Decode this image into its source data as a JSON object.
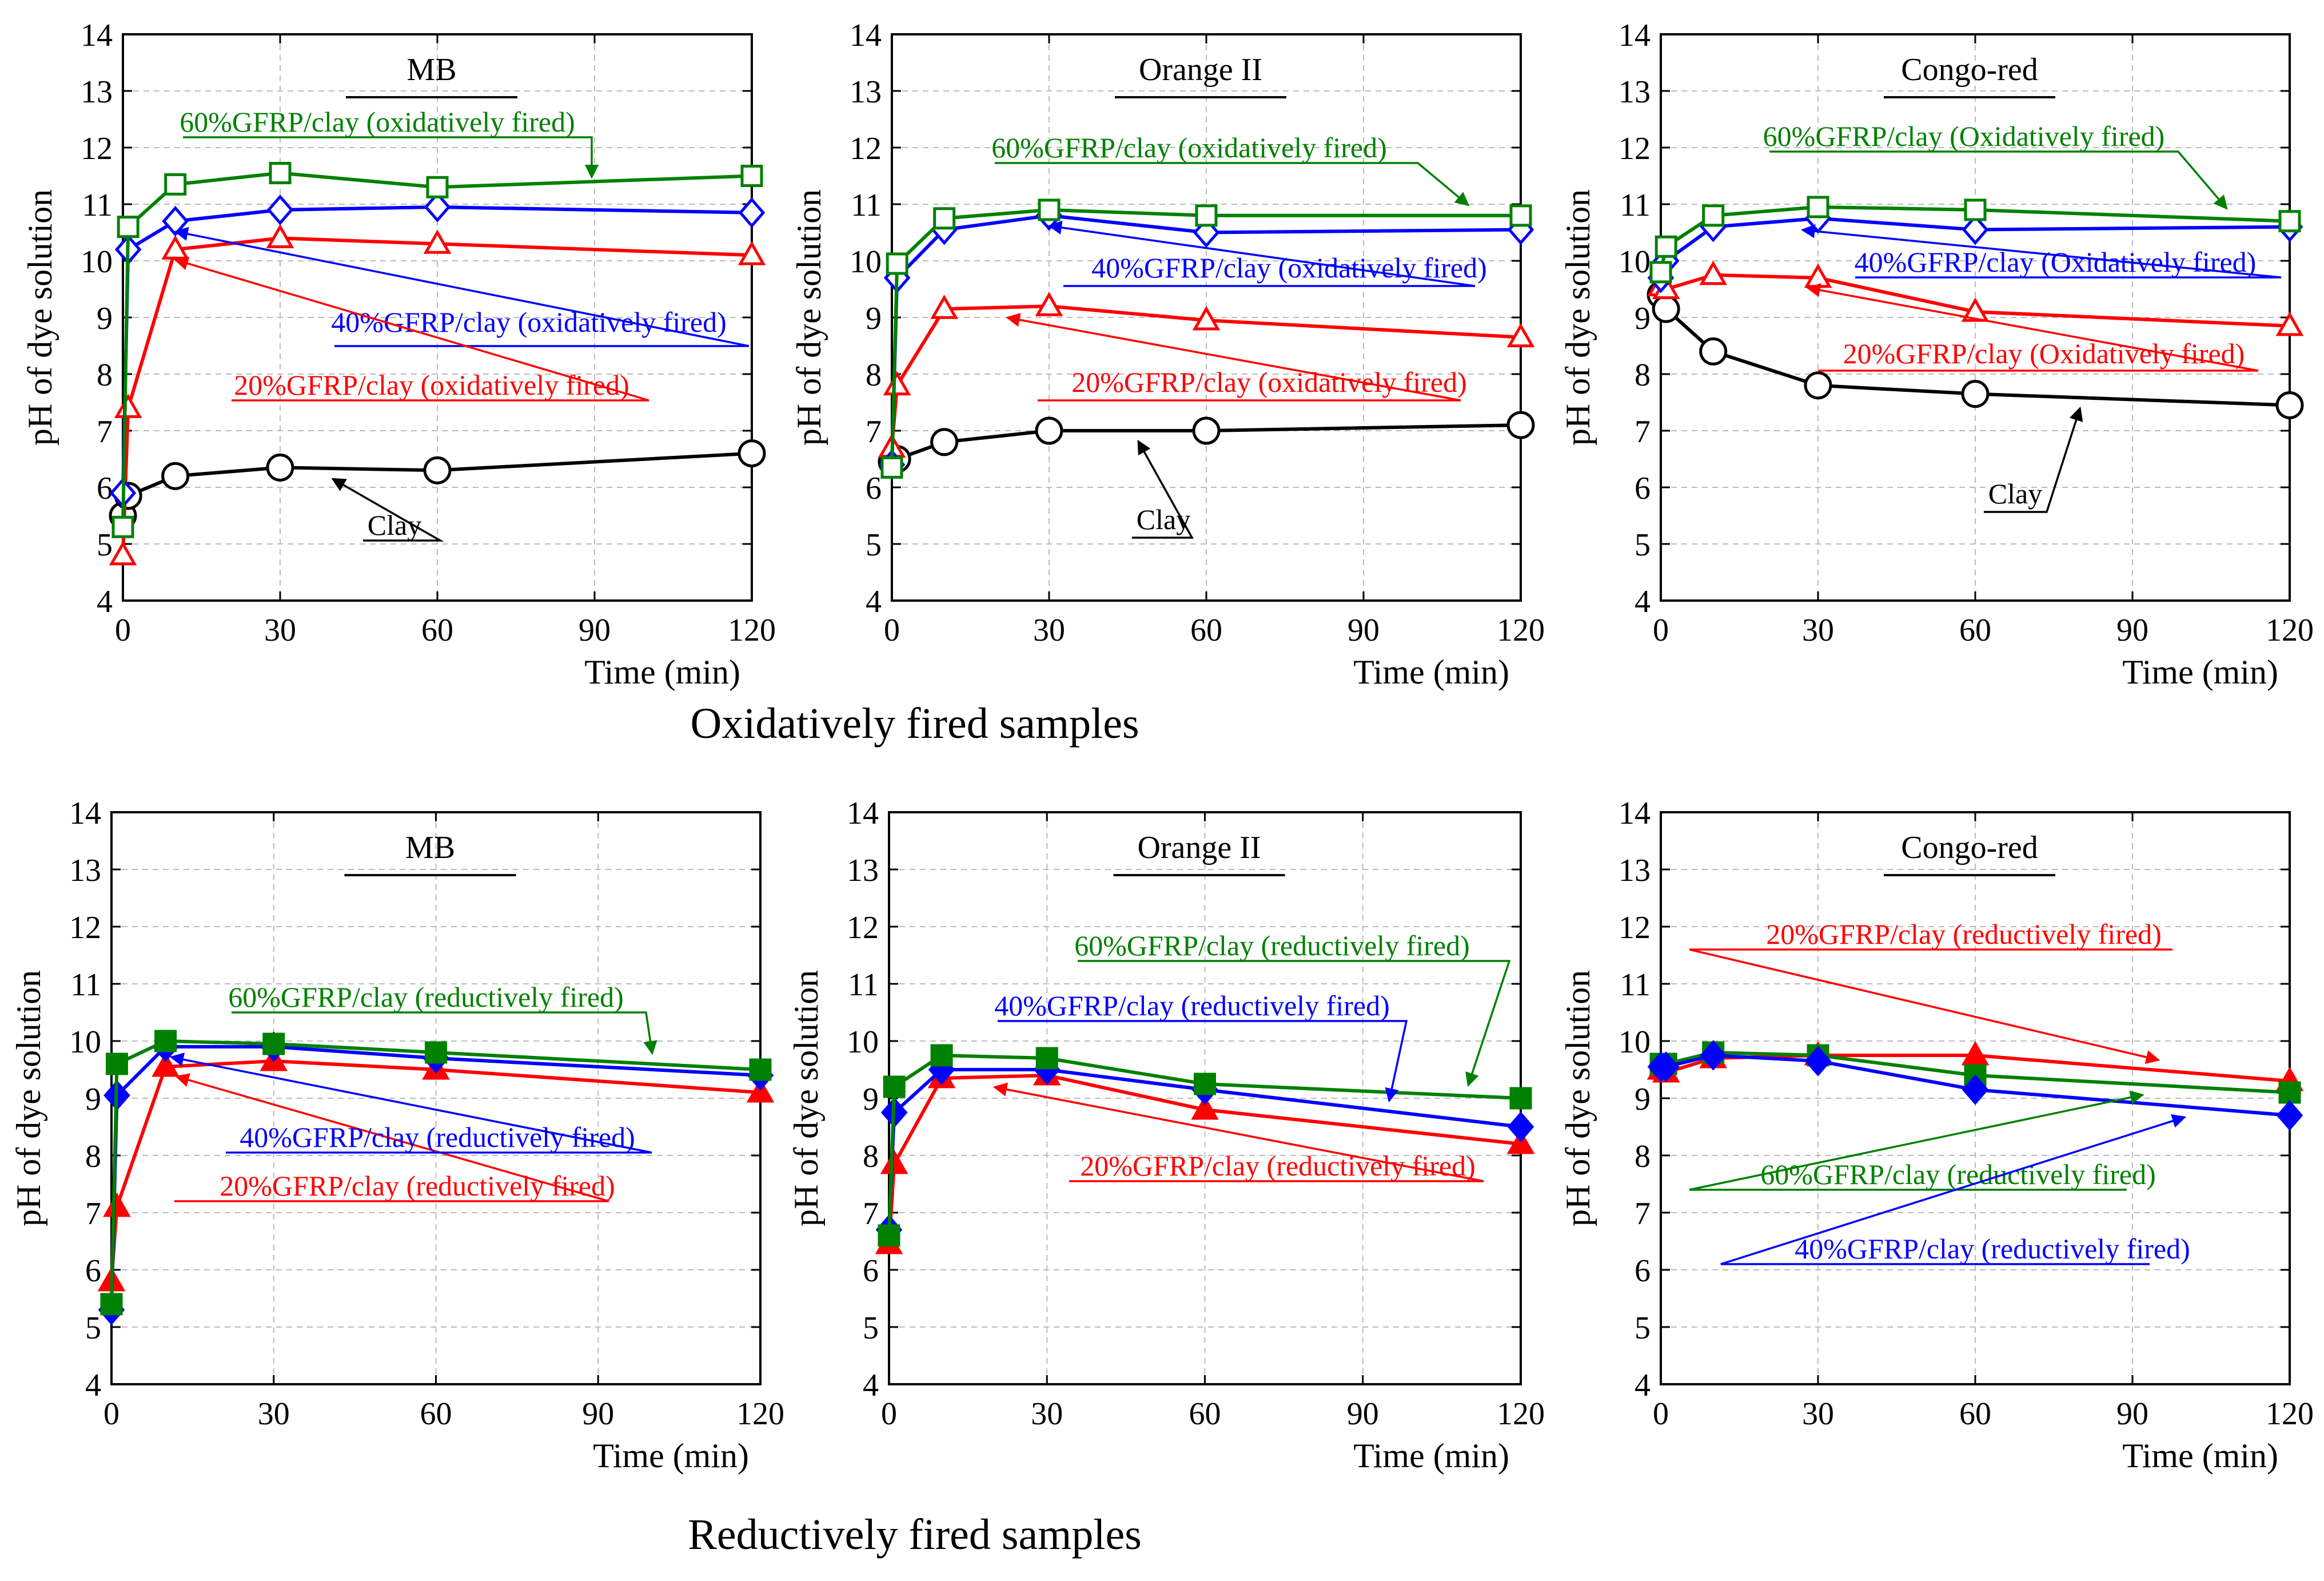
{
  "figure": {
    "row_captions": [
      "Oxidatively fired samples",
      "Reductively fired samples"
    ]
  },
  "colors": {
    "clay": "#000000",
    "gfrp20": "#ff0000",
    "gfrp40": "#0000ff",
    "gfrp60": "#008000",
    "grid": "#bbbbbb"
  },
  "chart_data": [
    {
      "type": "line",
      "title": "MB",
      "group": "Oxidatively fired samples",
      "xlabel": "Time (min)",
      "ylabel": "pH of dye solution",
      "xlim": [
        0,
        120
      ],
      "ylim": [
        4,
        14
      ],
      "xticks": [
        0,
        30,
        60,
        90,
        120
      ],
      "yticks": [
        4,
        5,
        6,
        7,
        8,
        9,
        10,
        11,
        12,
        13,
        14
      ],
      "grid": true,
      "series": [
        {
          "name": "Clay",
          "label": "Clay",
          "marker": "open-circle",
          "color": "#000000",
          "x": [
            0,
            1,
            10,
            30,
            60,
            120
          ],
          "y": [
            5.5,
            5.85,
            6.2,
            6.35,
            6.3,
            6.6
          ]
        },
        {
          "name": "20%GFRP/clay (oxidatively fired)",
          "label": "20%GFRP/clay (oxidatively fired)",
          "marker": "open-triangle",
          "color": "#ff0000",
          "x": [
            0,
            1,
            10,
            30,
            60,
            120
          ],
          "y": [
            4.8,
            7.4,
            10.2,
            10.4,
            10.3,
            10.1
          ]
        },
        {
          "name": "40%GFRP/clay (oxidatively fired)",
          "label": "40%GFRP/clay (oxidatively fired)",
          "marker": "open-diamond",
          "color": "#0000ff",
          "x": [
            0,
            1,
            10,
            30,
            60,
            120
          ],
          "y": [
            5.9,
            10.2,
            10.7,
            10.9,
            10.95,
            10.85
          ]
        },
        {
          "name": "60%GFRP/clay (oxidatively fired)",
          "label": "60%GFRP/clay (oxidatively fired)",
          "marker": "open-square",
          "color": "#008000",
          "x": [
            0,
            1,
            10,
            30,
            60,
            120
          ],
          "y": [
            5.3,
            10.6,
            11.35,
            11.55,
            11.3,
            11.5
          ]
        }
      ]
    },
    {
      "type": "line",
      "title": "Orange II",
      "group": "Oxidatively fired samples",
      "xlabel": "Time (min)",
      "ylabel": "pH of dye solution",
      "xlim": [
        0,
        120
      ],
      "ylim": [
        4,
        14
      ],
      "xticks": [
        0,
        30,
        60,
        90,
        120
      ],
      "yticks": [
        4,
        5,
        6,
        7,
        8,
        9,
        10,
        11,
        12,
        13,
        14
      ],
      "grid": true,
      "series": [
        {
          "name": "Clay",
          "label": "Clay",
          "marker": "open-circle",
          "color": "#000000",
          "x": [
            0,
            1,
            10,
            30,
            60,
            120
          ],
          "y": [
            6.45,
            6.5,
            6.8,
            7.0,
            7.0,
            7.1
          ]
        },
        {
          "name": "20%GFRP/clay (oxidatively fired)",
          "label": "20%GFRP/clay (oxidatively fired)",
          "marker": "open-triangle",
          "color": "#ff0000",
          "x": [
            0,
            1,
            10,
            30,
            60,
            120
          ],
          "y": [
            6.7,
            7.8,
            9.15,
            9.2,
            8.95,
            8.65
          ]
        },
        {
          "name": "40%GFRP/clay (oxidatively fired)",
          "label": "40%GFRP/clay (oxidatively fired)",
          "marker": "open-diamond",
          "color": "#0000ff",
          "x": [
            0,
            1,
            10,
            30,
            60,
            120
          ],
          "y": [
            6.4,
            9.7,
            10.55,
            10.8,
            10.5,
            10.55
          ]
        },
        {
          "name": "60%GFRP/clay (oxidatively fired)",
          "label": "60%GFRP/clay (oxidatively fired)",
          "marker": "open-square",
          "color": "#008000",
          "x": [
            0,
            1,
            10,
            30,
            60,
            120
          ],
          "y": [
            6.35,
            9.95,
            10.75,
            10.9,
            10.8,
            10.8
          ]
        }
      ]
    },
    {
      "type": "line",
      "title": "Congo-red",
      "group": "Oxidatively fired samples",
      "xlabel": "Time (min)",
      "ylabel": "pH of dye solution",
      "xlim": [
        0,
        120
      ],
      "ylim": [
        4,
        14
      ],
      "xticks": [
        0,
        30,
        60,
        90,
        120
      ],
      "yticks": [
        4,
        5,
        6,
        7,
        8,
        9,
        10,
        11,
        12,
        13,
        14
      ],
      "grid": true,
      "series": [
        {
          "name": "Clay",
          "label": "Clay",
          "marker": "open-circle",
          "color": "#000000",
          "x": [
            0,
            1,
            10,
            30,
            60,
            120
          ],
          "y": [
            9.4,
            9.15,
            8.4,
            7.8,
            7.65,
            7.45
          ]
        },
        {
          "name": "20%GFRP/clay (Oxidatively fired)",
          "label": "20%GFRP/clay (Oxidatively fired)",
          "marker": "open-triangle",
          "color": "#ff0000",
          "x": [
            0,
            1,
            10,
            30,
            60,
            120
          ],
          "y": [
            9.55,
            9.5,
            9.75,
            9.7,
            9.1,
            8.85
          ]
        },
        {
          "name": "40%GFRP/clay (Oxidatively fired)",
          "label": "40%GFRP/clay (Oxidatively fired)",
          "marker": "open-diamond",
          "color": "#0000ff",
          "x": [
            0,
            1,
            10,
            30,
            60,
            120
          ],
          "y": [
            9.7,
            10.0,
            10.6,
            10.75,
            10.55,
            10.6
          ]
        },
        {
          "name": "60%GFRP/clay (Oxidatively fired)",
          "label": "60%GFRP/clay (Oxidatively fired)",
          "marker": "open-square",
          "color": "#008000",
          "x": [
            0,
            1,
            10,
            30,
            60,
            120
          ],
          "y": [
            9.8,
            10.25,
            10.8,
            10.95,
            10.9,
            10.7
          ]
        }
      ]
    },
    {
      "type": "line",
      "title": "MB",
      "group": "Reductively fired samples",
      "xlabel": "Time (min)",
      "ylabel": "pH of dye solution",
      "xlim": [
        0,
        120
      ],
      "ylim": [
        4,
        14
      ],
      "xticks": [
        0,
        30,
        60,
        90,
        120
      ],
      "yticks": [
        4,
        5,
        6,
        7,
        8,
        9,
        10,
        11,
        12,
        13,
        14
      ],
      "grid": true,
      "series": [
        {
          "name": "20%GFRP/clay (reductively fired)",
          "label": "20%GFRP/clay (reductively fired)",
          "marker": "filled-triangle",
          "color": "#ff0000",
          "x": [
            0,
            1,
            10,
            30,
            60,
            120
          ],
          "y": [
            5.8,
            7.1,
            9.55,
            9.65,
            9.5,
            9.1
          ]
        },
        {
          "name": "40%GFRP/clay (reductively fired)",
          "label": "40%GFRP/clay (reductively fired)",
          "marker": "filled-diamond",
          "color": "#0000ff",
          "x": [
            0,
            1,
            10,
            30,
            60,
            120
          ],
          "y": [
            5.3,
            9.05,
            9.9,
            9.9,
            9.7,
            9.4
          ]
        },
        {
          "name": "60%GFRP/clay (reductively fired)",
          "label": "60%GFRP/clay (reductively fired)",
          "marker": "filled-square",
          "color": "#008000",
          "x": [
            0,
            1,
            10,
            30,
            60,
            120
          ],
          "y": [
            5.4,
            9.6,
            10.0,
            9.95,
            9.8,
            9.5
          ]
        }
      ]
    },
    {
      "type": "line",
      "title": "Orange II",
      "group": "Reductively fired samples",
      "xlabel": "Time (min)",
      "ylabel": "pH of dye solution",
      "xlim": [
        0,
        120
      ],
      "ylim": [
        4,
        14
      ],
      "xticks": [
        0,
        30,
        60,
        90,
        120
      ],
      "yticks": [
        4,
        5,
        6,
        7,
        8,
        9,
        10,
        11,
        12,
        13,
        14
      ],
      "grid": true,
      "series": [
        {
          "name": "20%GFRP/clay (reductively fired)",
          "label": "20%GFRP/clay (reductively fired)",
          "marker": "filled-triangle",
          "color": "#ff0000",
          "x": [
            0,
            1,
            10,
            30,
            60,
            120
          ],
          "y": [
            6.45,
            7.85,
            9.35,
            9.4,
            8.8,
            8.2
          ]
        },
        {
          "name": "40%GFRP/clay (reductively fired)",
          "label": "40%GFRP/clay (reductively fired)",
          "marker": "filled-diamond",
          "color": "#0000ff",
          "x": [
            0,
            1,
            10,
            30,
            60,
            120
          ],
          "y": [
            6.7,
            8.75,
            9.5,
            9.5,
            9.15,
            8.5
          ]
        },
        {
          "name": "60%GFRP/clay (reductively fired)",
          "label": "60%GFRP/clay (reductively fired)",
          "marker": "filled-square",
          "color": "#008000",
          "x": [
            0,
            1,
            10,
            30,
            60,
            120
          ],
          "y": [
            6.6,
            9.2,
            9.75,
            9.7,
            9.25,
            9.0
          ]
        }
      ]
    },
    {
      "type": "line",
      "title": "Congo-red",
      "group": "Reductively fired samples",
      "xlabel": "Time (min)",
      "ylabel": "pH of dye solution",
      "xlim": [
        0,
        120
      ],
      "ylim": [
        4,
        14
      ],
      "xticks": [
        0,
        30,
        60,
        90,
        120
      ],
      "yticks": [
        4,
        5,
        6,
        7,
        8,
        9,
        10,
        11,
        12,
        13,
        14
      ],
      "grid": true,
      "series": [
        {
          "name": "20%GFRP/clay (reductively fired)",
          "label": "20%GFRP/clay (reductively fired)",
          "marker": "filled-triangle",
          "color": "#ff0000",
          "x": [
            0,
            1,
            10,
            30,
            60,
            120
          ],
          "y": [
            9.5,
            9.45,
            9.7,
            9.75,
            9.75,
            9.3
          ]
        },
        {
          "name": "60%GFRP/clay (reductively fired)",
          "label": "60%GFRP/clay (reductively fired)",
          "marker": "filled-square",
          "color": "#008000",
          "x": [
            0,
            1,
            10,
            30,
            60,
            120
          ],
          "y": [
            9.6,
            9.6,
            9.8,
            9.75,
            9.4,
            9.1
          ]
        },
        {
          "name": "40%GFRP/clay (reductively fired)",
          "label": "40%GFRP/clay (reductively fired)",
          "marker": "filled-diamond",
          "color": "#0000ff",
          "x": [
            0,
            1,
            10,
            30,
            60,
            120
          ],
          "y": [
            9.55,
            9.55,
            9.75,
            9.65,
            9.15,
            8.7
          ]
        }
      ]
    }
  ]
}
